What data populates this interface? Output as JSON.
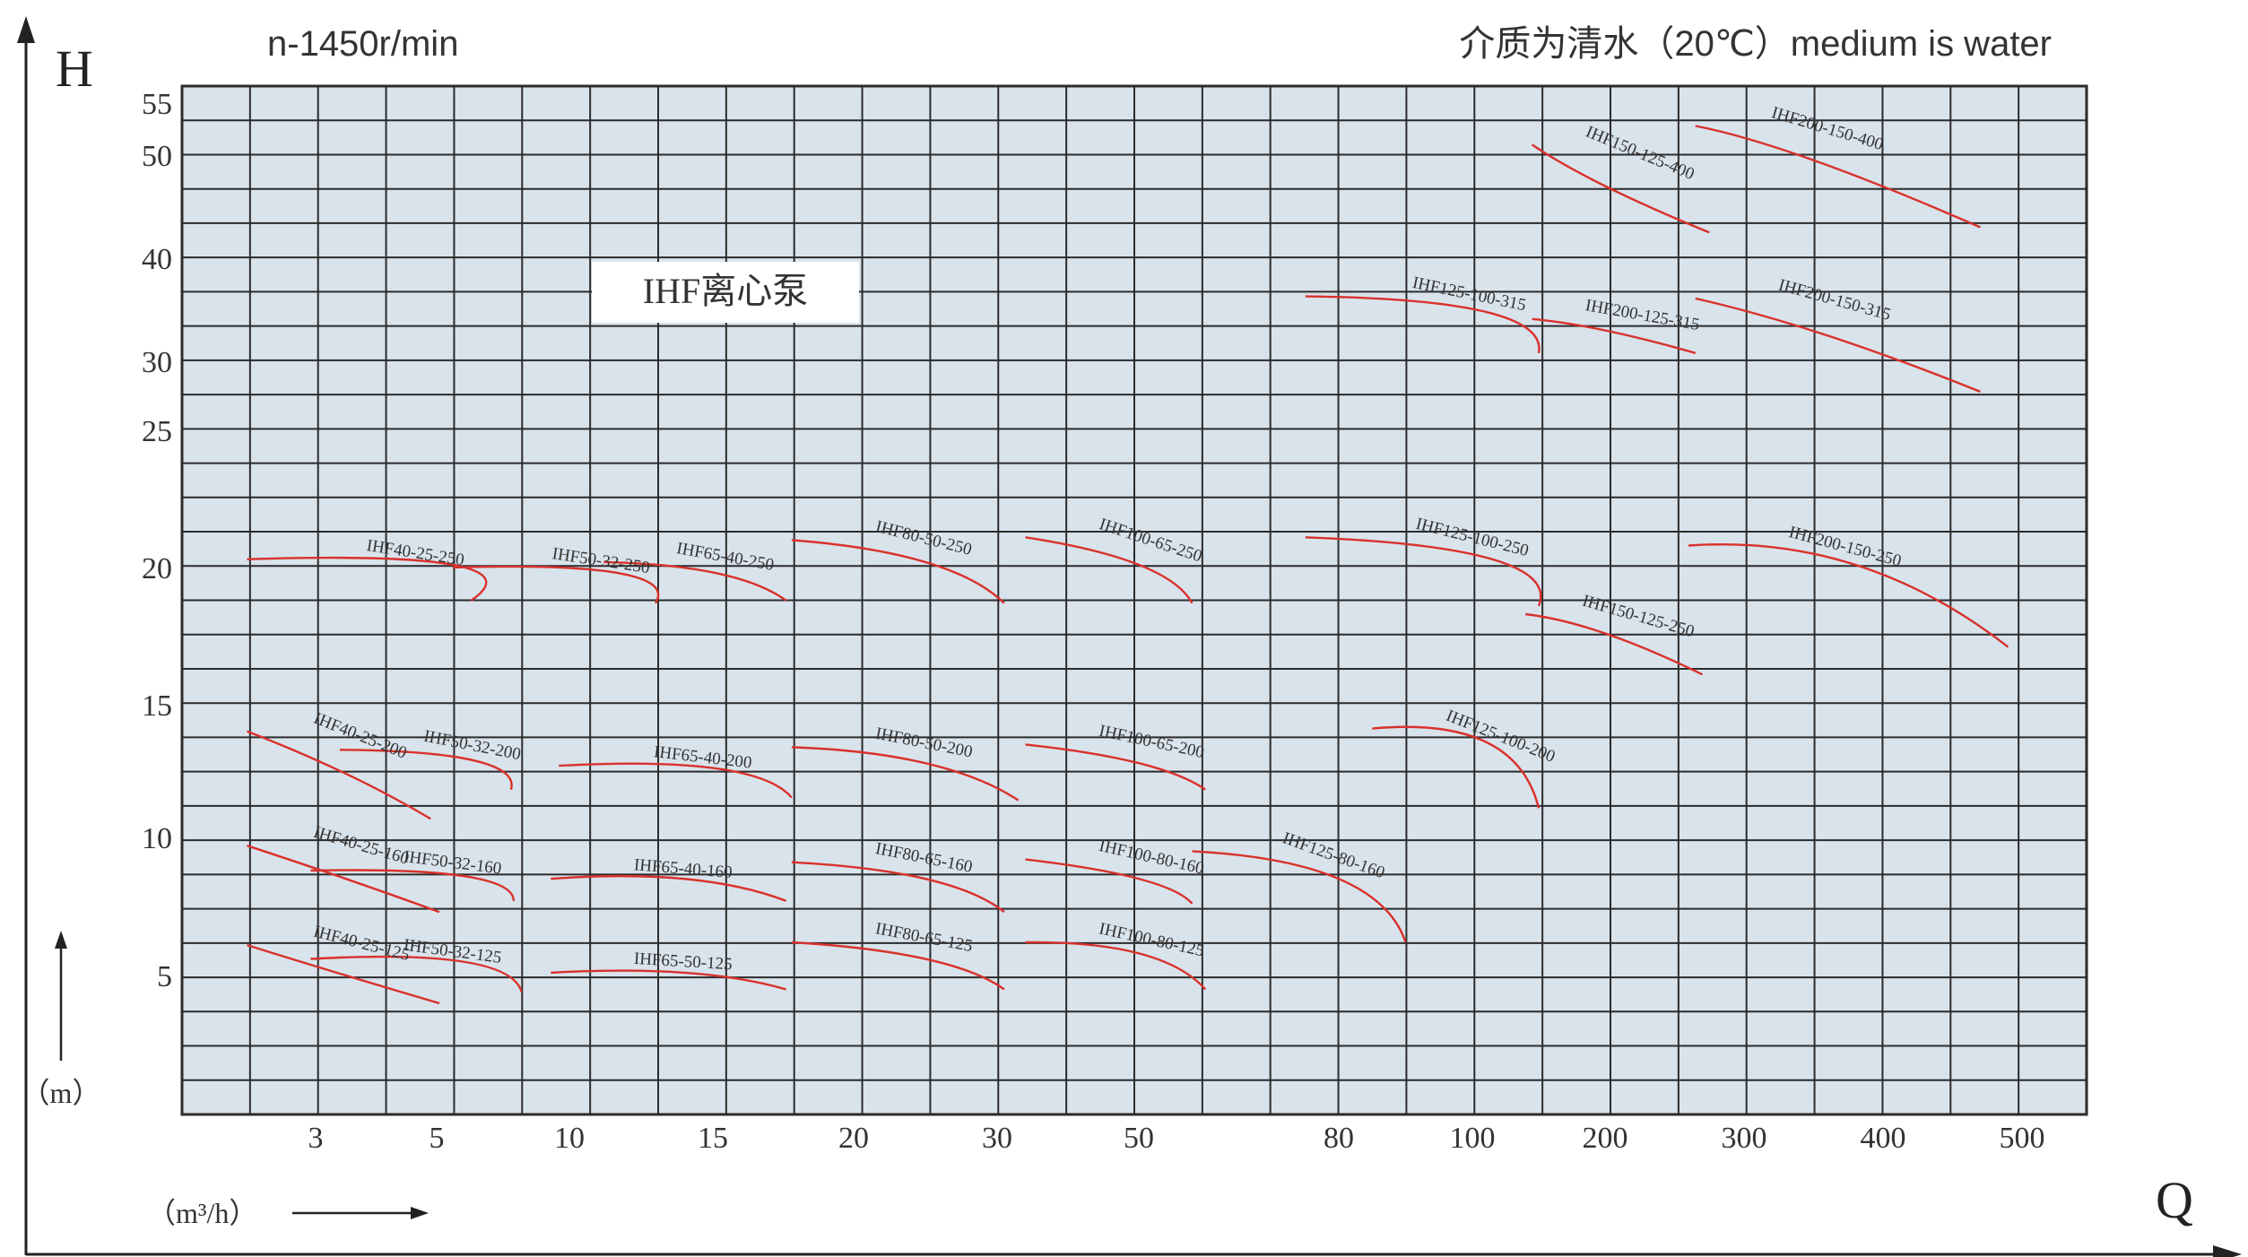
{
  "chart_data": {
    "type": "line",
    "title": "IHF离心泵",
    "speed_label": "n-1450r/min",
    "medium_label": "介质为清水（20℃）medium is water",
    "ylabel": "H",
    "yunit": "（m）",
    "xlabel": "Q",
    "xunit": "（m³/h）",
    "colors": {
      "plot_bg": "#d9e3ec",
      "grid": "#2b2b2b",
      "curve": "#d9312b",
      "axis": "#222222"
    },
    "x_ticks": [
      "3",
      "5",
      "10",
      "15",
      "20",
      "30",
      "50",
      "80",
      "100",
      "200",
      "300",
      "400",
      "500"
    ],
    "y_ticks": [
      "55",
      "50",
      "40",
      "30",
      "25",
      "20",
      "15",
      "10",
      "5"
    ],
    "series": [
      {
        "name": "IHF40-25-250",
        "x": [
          1.6,
          5.6,
          6.3
        ],
        "y": [
          20.3,
          20.1,
          18.8
        ]
      },
      {
        "name": "IHF50-32-250",
        "x": [
          5.6,
          11.7,
          13.0
        ],
        "y": [
          20.0,
          19.8,
          18.7
        ]
      },
      {
        "name": "IHF65-40-250",
        "x": [
          11.2,
          15.1,
          17.6
        ],
        "y": [
          20.2,
          19.8,
          18.8
        ]
      },
      {
        "name": "IHF80-50-250",
        "x": [
          17.8,
          25.0,
          31.0
        ],
        "y": [
          21.0,
          20.2,
          18.7
        ]
      },
      {
        "name": "IHF100-65-250",
        "x": [
          34.0,
          50.0,
          58.0
        ],
        "y": [
          21.1,
          20.1,
          18.7
        ]
      },
      {
        "name": "IHF125-100-250",
        "x": [
          75.0,
          115.0,
          150.0
        ],
        "y": [
          21.1,
          20.3,
          18.6
        ]
      },
      {
        "name": "IHF150-125-250",
        "x": [
          140.0,
          200.0,
          270.0
        ],
        "y": [
          18.3,
          17.6,
          16.1
        ]
      },
      {
        "name": "IHF200-150-250",
        "x": [
          260.0,
          380.0,
          490.0
        ],
        "y": [
          20.8,
          20.1,
          17.1
        ]
      },
      {
        "name": "IHF40-25-200",
        "x": [
          1.6,
          3.5,
          4.9
        ],
        "y": [
          14.0,
          12.4,
          10.7
        ]
      },
      {
        "name": "IHF50-32-200",
        "x": [
          3.4,
          6.4,
          7.8
        ],
        "y": [
          13.3,
          12.9,
          11.8
        ]
      },
      {
        "name": "IHF65-40-200",
        "x": [
          9.6,
          15.1,
          17.8
        ],
        "y": [
          12.7,
          12.6,
          11.5
        ]
      },
      {
        "name": "IHF80-50-200",
        "x": [
          17.8,
          25.0,
          33.0
        ],
        "y": [
          13.4,
          12.8,
          11.4
        ]
      },
      {
        "name": "IHF100-65-200",
        "x": [
          34.0,
          50.0,
          60.0
        ],
        "y": [
          13.5,
          12.8,
          11.8
        ]
      },
      {
        "name": "IHF125-100-200",
        "x": [
          85.0,
          110.0,
          150.0
        ],
        "y": [
          14.1,
          13.6,
          11.1
        ]
      },
      {
        "name": "IHF40-25-160",
        "x": [
          1.6,
          3.5,
          5.1
        ],
        "y": [
          9.7,
          8.5,
          7.3
        ]
      },
      {
        "name": "IHF50-32-160",
        "x": [
          2.9,
          6.0,
          7.9
        ],
        "y": [
          8.8,
          8.6,
          7.7
        ]
      },
      {
        "name": "IHF65-40-160",
        "x": [
          9.3,
          14.0,
          17.6
        ],
        "y": [
          8.5,
          8.5,
          7.7
        ]
      },
      {
        "name": "IHF80-65-160",
        "x": [
          17.8,
          25.0,
          31.0
        ],
        "y": [
          9.1,
          8.5,
          7.3
        ]
      },
      {
        "name": "IHF100-80-160",
        "x": [
          34.0,
          50.0,
          58.0
        ],
        "y": [
          9.2,
          8.5,
          7.6
        ]
      },
      {
        "name": "IHF125-80-160",
        "x": [
          58.0,
          80.0,
          90.0
        ],
        "y": [
          9.5,
          8.5,
          6.2
        ]
      },
      {
        "name": "IHF40-25-125",
        "x": [
          1.6,
          3.5,
          5.1
        ],
        "y": [
          6.1,
          5.0,
          4.0
        ]
      },
      {
        "name": "IHF50-32-125",
        "x": [
          2.9,
          6.0,
          8.2
        ],
        "y": [
          5.6,
          5.5,
          4.4
        ]
      },
      {
        "name": "IHF65-50-125",
        "x": [
          9.3,
          14.0,
          17.6
        ],
        "y": [
          5.1,
          5.1,
          4.5
        ]
      },
      {
        "name": "IHF80-65-125",
        "x": [
          17.8,
          25.0,
          31.0
        ],
        "y": [
          6.2,
          5.6,
          4.5
        ]
      },
      {
        "name": "IHF100-80-125",
        "x": [
          34.0,
          50.0,
          60.0
        ],
        "y": [
          6.2,
          5.8,
          4.5
        ]
      },
      {
        "name": "IHF150-125-400",
        "x": [
          145.0,
          200.0,
          275.0
        ],
        "y": [
          51.0,
          47.0,
          42.5
        ]
      },
      {
        "name": "IHF200-150-400",
        "x": [
          265.0,
          350.0,
          470.0
        ],
        "y": [
          52.8,
          49.5,
          43.0
        ]
      },
      {
        "name": "IHF125-100-315",
        "x": [
          75.0,
          110.0,
          150.0
        ],
        "y": [
          36.3,
          34.8,
          30.8
        ]
      },
      {
        "name": "IHF200-125-315",
        "x": [
          145.0,
          200.0,
          265.0
        ],
        "y": [
          34.1,
          33.0,
          30.8
        ]
      },
      {
        "name": "IHF200-150-315",
        "x": [
          265.0,
          360.0,
          470.0
        ],
        "y": [
          36.1,
          32.5,
          27.8
        ]
      }
    ]
  }
}
